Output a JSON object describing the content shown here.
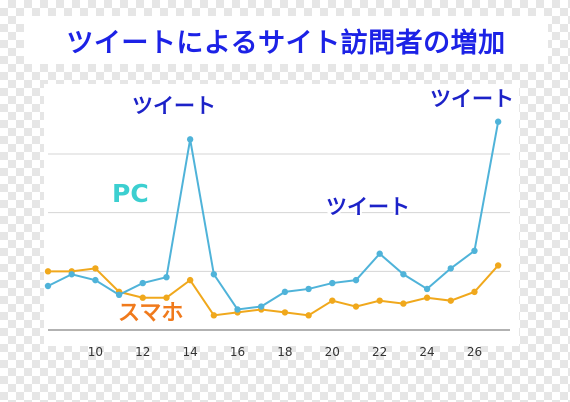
{
  "title": "ツイートによるサイト訪問者の増加",
  "chart_data": {
    "type": "line",
    "x": [
      8,
      9,
      10,
      11,
      12,
      13,
      14,
      15,
      16,
      17,
      18,
      19,
      20,
      21,
      22,
      23,
      24,
      25,
      26,
      27
    ],
    "series": [
      {
        "name": "PC",
        "color": "#4fb3d9",
        "values": [
          15,
          19,
          17,
          12,
          16,
          18,
          65,
          19,
          7,
          8,
          13,
          14,
          16,
          17,
          26,
          19,
          14,
          21,
          27,
          71
        ]
      },
      {
        "name": "スマホ",
        "color": "#f0a81c",
        "values": [
          20,
          20,
          21,
          13,
          11,
          11,
          17,
          5,
          6,
          7,
          6,
          5,
          10,
          8,
          10,
          9,
          11,
          10,
          13,
          22
        ]
      }
    ],
    "x_ticks": [
      10,
      12,
      14,
      16,
      18,
      20,
      22,
      24,
      26
    ],
    "x_range": [
      8,
      27.5
    ],
    "y_range": [
      0,
      75
    ],
    "y_gridlines": [
      0,
      20,
      40,
      60
    ],
    "grid": true,
    "legend": "inline labels",
    "annotations": [
      {
        "text": "ツイート",
        "x": 14
      },
      {
        "text": "ツイート",
        "x": 22
      },
      {
        "text": "ツイート",
        "x": 27
      }
    ]
  }
}
